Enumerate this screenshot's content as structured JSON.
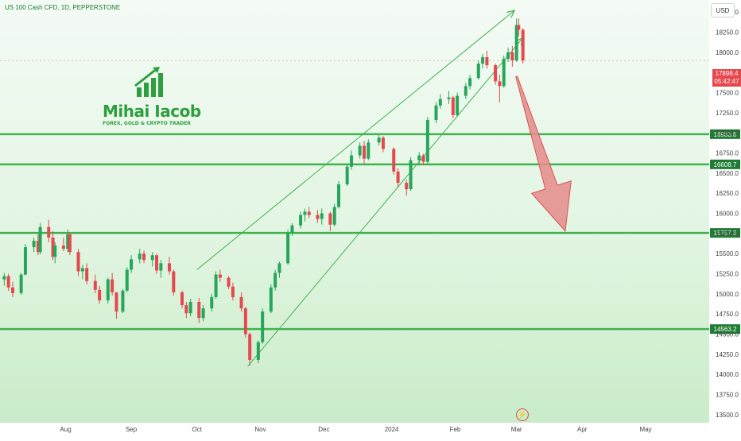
{
  "header": {
    "instrument": "US 100 Cash CFD, 1D, PEPPERSTONE",
    "currency": "USD"
  },
  "watermark": {
    "name": "Mihai Iacob",
    "tagline": "FOREX, GOLD & CRYPTO TRADER",
    "icon": "rising-bars-arrow-icon"
  },
  "current_price": {
    "value": "17898.4",
    "countdown": "05:42:47",
    "color": "#e5484d"
  },
  "colors": {
    "up": "#26a65b",
    "down": "#e5484d",
    "level_line": "#3fb24f",
    "arrow_fill": "#e58b8b",
    "arrow_stroke": "#d9534f",
    "background_top": "#f4fbf5",
    "background_bottom": "#c9ecc9"
  },
  "chart_data": {
    "type": "candlestick",
    "symbol": "US 100 Cash CFD",
    "timeframe": "1D",
    "source": "PEPPERSTONE",
    "currency": "USD",
    "y_axis": {
      "ticks": [
        13500,
        13750,
        14000,
        14250,
        14500,
        14750,
        15000,
        15250,
        15500,
        15750,
        16000,
        16250,
        16500,
        16750,
        17000,
        17250,
        17500,
        17750,
        18000,
        18250,
        18500
      ],
      "tick_labels": [
        "13500.0",
        "13750.0",
        "14000.0",
        "14250.0",
        "14500.0",
        "14750.0",
        "15000.0",
        "15250.0",
        "15500.0",
        "15750.0",
        "16000.0",
        "16250.0",
        "16500.0",
        "16750.0",
        "17000.0",
        "17250.0",
        "17500.0",
        "17750.0",
        "18000.0",
        "18250.0",
        "18500.0"
      ],
      "ylim": [
        13400,
        18650
      ]
    },
    "x_axis": {
      "ticks": [
        {
          "label": "Aug",
          "date": "2023-08-01"
        },
        {
          "label": "Sep",
          "date": "2023-09-01"
        },
        {
          "label": "Oct",
          "date": "2023-10-02"
        },
        {
          "label": "Nov",
          "date": "2023-11-01"
        },
        {
          "label": "Dec",
          "date": "2023-12-01"
        },
        {
          "label": "2024",
          "date": "2024-01-02"
        },
        {
          "label": "Feb",
          "date": "2024-02-01"
        },
        {
          "label": "Mar",
          "date": "2024-03-01"
        },
        {
          "label": "Apr",
          "date": "2024-04-01"
        },
        {
          "label": "May",
          "date": "2024-05-01"
        }
      ],
      "xlim": [
        "2023-07-01",
        "2024-05-31"
      ]
    },
    "levels": [
      {
        "price": 16983.8,
        "label": "16983.8"
      },
      {
        "price": 16608.7,
        "label": "16608.7"
      },
      {
        "price": 15757.3,
        "label": "15757.3"
      },
      {
        "price": 14563.2,
        "label": "14563.2"
      }
    ],
    "last_price": 17898.4,
    "channel": {
      "upper": [
        [
          "2023-10-02",
          15300
        ],
        [
          "2024-02-29",
          18520
        ]
      ],
      "lower": [
        [
          "2023-10-26",
          14100
        ],
        [
          "2024-03-04",
          18180
        ]
      ]
    },
    "projection_arrow": {
      "from": [
        "2024-03-01",
        17700
      ],
      "to": [
        "2024-03-24",
        15780
      ]
    },
    "candles": [
      [
        "2023-07-03",
        15180,
        15260,
        15100,
        15220
      ],
      [
        "2023-07-05",
        15220,
        15250,
        15040,
        15080
      ],
      [
        "2023-07-07",
        15080,
        15150,
        14960,
        15010
      ],
      [
        "2023-07-11",
        15010,
        15260,
        14990,
        15240
      ],
      [
        "2023-07-13",
        15240,
        15620,
        15230,
        15580
      ],
      [
        "2023-07-17",
        15580,
        15700,
        15520,
        15660
      ],
      [
        "2023-07-19",
        15660,
        15740,
        15480,
        15520
      ],
      [
        "2023-07-20",
        15520,
        15880,
        15490,
        15830
      ],
      [
        "2023-07-24",
        15830,
        15920,
        15640,
        15700
      ],
      [
        "2023-07-26",
        15700,
        15780,
        15420,
        15460
      ],
      [
        "2023-07-27",
        15460,
        15640,
        15380,
        15600
      ],
      [
        "2023-07-31",
        15600,
        15700,
        15530,
        15560
      ],
      [
        "2023-08-02",
        15560,
        15800,
        15520,
        15740
      ],
      [
        "2023-08-03",
        15740,
        15770,
        15480,
        15520
      ],
      [
        "2023-08-07",
        15520,
        15560,
        15220,
        15280
      ],
      [
        "2023-08-09",
        15280,
        15360,
        15180,
        15320
      ],
      [
        "2023-08-11",
        15320,
        15380,
        15120,
        15160
      ],
      [
        "2023-08-15",
        15160,
        15240,
        15010,
        15050
      ],
      [
        "2023-08-17",
        15050,
        15100,
        14880,
        14920
      ],
      [
        "2023-08-21",
        14920,
        15200,
        14880,
        15180
      ],
      [
        "2023-08-23",
        15180,
        15260,
        14980,
        15020
      ],
      [
        "2023-08-25",
        15020,
        14980,
        14690,
        14780
      ],
      [
        "2023-08-28",
        14780,
        15060,
        14760,
        15040
      ],
      [
        "2023-08-30",
        15040,
        15330,
        15020,
        15300
      ],
      [
        "2023-09-01",
        15300,
        15480,
        15260,
        15430
      ],
      [
        "2023-09-05",
        15430,
        15560,
        15380,
        15500
      ],
      [
        "2023-09-07",
        15500,
        15540,
        15380,
        15420
      ],
      [
        "2023-09-11",
        15420,
        15520,
        15340,
        15480
      ],
      [
        "2023-09-13",
        15480,
        15500,
        15250,
        15290
      ],
      [
        "2023-09-15",
        15290,
        15420,
        15200,
        15380
      ],
      [
        "2023-09-19",
        15380,
        15460,
        15240,
        15280
      ],
      [
        "2023-09-21",
        15280,
        15300,
        14980,
        15020
      ],
      [
        "2023-09-25",
        15020,
        15040,
        14820,
        14860
      ],
      [
        "2023-09-27",
        14860,
        14900,
        14700,
        14760
      ],
      [
        "2023-09-29",
        14760,
        14940,
        14720,
        14900
      ],
      [
        "2023-10-03",
        14900,
        14950,
        14640,
        14700
      ],
      [
        "2023-10-05",
        14700,
        14860,
        14660,
        14820
      ],
      [
        "2023-10-09",
        14820,
        15000,
        14780,
        14960
      ],
      [
        "2023-10-11",
        14960,
        15280,
        14940,
        15240
      ],
      [
        "2023-10-13",
        15240,
        15300,
        15150,
        15200
      ],
      [
        "2023-10-17",
        15200,
        15220,
        15060,
        15090
      ],
      [
        "2023-10-19",
        15090,
        15140,
        14920,
        14960
      ],
      [
        "2023-10-23",
        14960,
        15020,
        14780,
        14820
      ],
      [
        "2023-10-25",
        14820,
        14840,
        14460,
        14500
      ],
      [
        "2023-10-27",
        14500,
        14520,
        14110,
        14180
      ],
      [
        "2023-10-31",
        14180,
        14420,
        14140,
        14400
      ],
      [
        "2023-11-02",
        14400,
        14820,
        14380,
        14780
      ],
      [
        "2023-11-06",
        14780,
        15120,
        14760,
        15080
      ],
      [
        "2023-11-08",
        15080,
        15300,
        15040,
        15260
      ],
      [
        "2023-11-10",
        15260,
        15400,
        15200,
        15380
      ],
      [
        "2023-11-14",
        15380,
        15800,
        15360,
        15760
      ],
      [
        "2023-11-16",
        15760,
        15880,
        15720,
        15850
      ],
      [
        "2023-11-20",
        15850,
        16020,
        15810,
        15980
      ],
      [
        "2023-11-22",
        15980,
        16060,
        15900,
        16020
      ],
      [
        "2023-11-24",
        16020,
        16080,
        15940,
        15980
      ],
      [
        "2023-11-28",
        15980,
        16040,
        15880,
        15930
      ],
      [
        "2023-11-30",
        15930,
        16060,
        15860,
        16000
      ],
      [
        "2023-12-04",
        16000,
        16020,
        15780,
        15860
      ],
      [
        "2023-12-06",
        15860,
        16120,
        15840,
        16080
      ],
      [
        "2023-12-08",
        16080,
        16400,
        16060,
        16360
      ],
      [
        "2023-12-12",
        16360,
        16620,
        16340,
        16580
      ],
      [
        "2023-12-14",
        16580,
        16780,
        16540,
        16720
      ],
      [
        "2023-12-18",
        16720,
        16880,
        16680,
        16840
      ],
      [
        "2023-12-20",
        16840,
        16900,
        16620,
        16680
      ],
      [
        "2023-12-22",
        16680,
        16920,
        16660,
        16880
      ],
      [
        "2023-12-27",
        16880,
        16980,
        16840,
        16940
      ],
      [
        "2023-12-29",
        16940,
        16960,
        16760,
        16800
      ],
      [
        "2024-01-03",
        16800,
        16820,
        16480,
        16520
      ],
      [
        "2024-01-05",
        16520,
        16560,
        16320,
        16380
      ],
      [
        "2024-01-09",
        16380,
        16420,
        16220,
        16300
      ],
      [
        "2024-01-11",
        16300,
        16700,
        16280,
        16660
      ],
      [
        "2024-01-15",
        16660,
        16760,
        16620,
        16720
      ],
      [
        "2024-01-17",
        16720,
        16740,
        16600,
        16640
      ],
      [
        "2024-01-19",
        16640,
        17200,
        16620,
        17160
      ],
      [
        "2024-01-23",
        17160,
        17380,
        17120,
        17340
      ],
      [
        "2024-01-25",
        17340,
        17480,
        17300,
        17420
      ],
      [
        "2024-01-29",
        17420,
        17520,
        17360,
        17440
      ],
      [
        "2024-01-31",
        17440,
        17460,
        17180,
        17220
      ],
      [
        "2024-02-02",
        17220,
        17500,
        17200,
        17460
      ],
      [
        "2024-02-06",
        17460,
        17620,
        17420,
        17580
      ],
      [
        "2024-02-08",
        17580,
        17720,
        17540,
        17680
      ],
      [
        "2024-02-12",
        17680,
        17900,
        17660,
        17860
      ],
      [
        "2024-02-14",
        17860,
        17980,
        17800,
        17940
      ],
      [
        "2024-02-16",
        17940,
        18020,
        17800,
        17840
      ],
      [
        "2024-02-20",
        17840,
        17860,
        17600,
        17640
      ],
      [
        "2024-02-22",
        17640,
        17720,
        17380,
        17580
      ],
      [
        "2024-02-24",
        17580,
        17960,
        17560,
        17920
      ],
      [
        "2024-02-26",
        17920,
        18060,
        17880,
        18000
      ],
      [
        "2024-02-28",
        18000,
        18080,
        17820,
        17900
      ],
      [
        "2024-03-01",
        17900,
        18420,
        17880,
        18340
      ],
      [
        "2024-03-02",
        18340,
        18420,
        18200,
        18280
      ],
      [
        "2024-03-04",
        18280,
        18300,
        17860,
        17898.4
      ]
    ]
  }
}
